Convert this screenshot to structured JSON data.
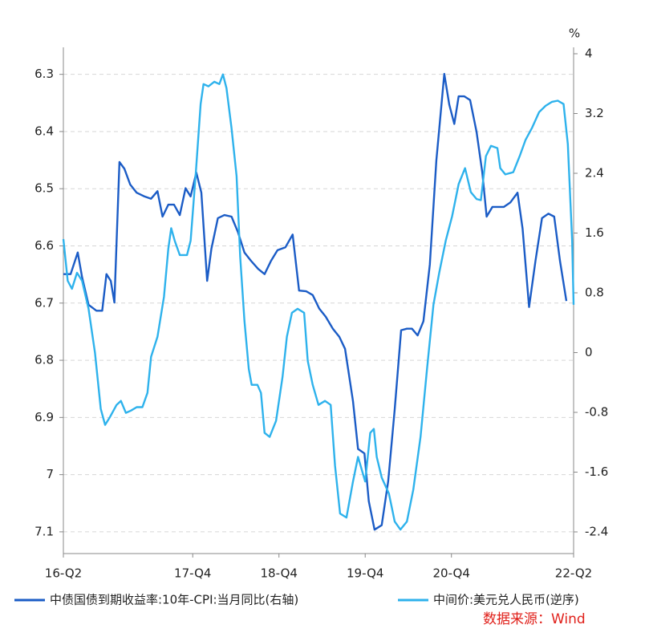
{
  "chart_data": {
    "type": "line",
    "y2_unit": "%",
    "xlim": [
      0,
      71
    ],
    "xticks": [
      {
        "value": 0,
        "label": "16-Q2"
      },
      {
        "value": 18,
        "label": "17-Q4"
      },
      {
        "value": 30,
        "label": "18-Q4"
      },
      {
        "value": 42,
        "label": "19-Q4"
      },
      {
        "value": 54,
        "label": "20-Q4"
      },
      {
        "value": 71,
        "label": "22-Q2"
      }
    ],
    "ylim": [
      7.138,
      6.264
    ],
    "yticks": [
      6.3,
      6.4,
      6.5,
      6.6,
      6.7,
      6.8,
      6.9,
      7,
      7.1
    ],
    "y2lim": [
      -2.69,
      4
    ],
    "y2ticks": [
      4,
      3.2,
      2.4,
      1.6,
      0.8,
      0,
      -0.8,
      -1.6,
      -2.4
    ],
    "grid": true,
    "legend": "bottom",
    "source": "数据来源：Wind",
    "source_color": "#e0201a",
    "series": [
      {
        "name": "中债国债到期收益率:10年-CPI:当月同比(右轴)",
        "color": "#1b5cc6",
        "axis": "y2",
        "x": [
          0,
          1.0,
          2.0,
          2.6,
          3.5,
          4.6,
          5.4,
          6.0,
          6.6,
          7.1,
          7.8,
          8.5,
          9.3,
          10.2,
          11.3,
          12.2,
          13.1,
          13.8,
          14.6,
          15.4,
          16.2,
          17.0,
          17.7,
          18.5,
          19.2,
          20.0,
          20.6,
          21.5,
          22.4,
          23.4,
          24.3,
          25.2,
          26.1,
          27.1,
          28.0,
          28.9,
          29.8,
          30.9,
          31.9,
          32.8,
          33.8,
          34.7,
          35.6,
          36.5,
          37.5,
          38.4,
          39.2,
          40.3,
          41.0,
          41.9,
          42.5,
          43.3,
          44.3,
          45.2,
          46.1,
          47.0,
          47.8,
          48.5,
          49.3,
          50.1,
          51.0,
          51.9,
          53.0,
          53.7,
          54.4,
          55.0,
          55.8,
          56.6,
          57.5,
          58.3,
          58.9,
          59.7,
          60.5,
          61.3,
          62.2,
          63.2,
          63.9,
          64.8,
          65.7,
          66.6,
          67.5,
          68.3,
          69.1,
          70.0
        ],
        "values": [
          1.05,
          1.05,
          1.34,
          1.01,
          0.64,
          0.56,
          0.56,
          1.05,
          0.96,
          0.67,
          2.55,
          2.46,
          2.25,
          2.14,
          2.09,
          2.06,
          2.16,
          1.82,
          1.98,
          1.98,
          1.84,
          2.2,
          2.09,
          2.41,
          2.14,
          0.96,
          1.39,
          1.8,
          1.84,
          1.82,
          1.61,
          1.34,
          1.23,
          1.12,
          1.05,
          1.23,
          1.37,
          1.41,
          1.58,
          0.83,
          0.82,
          0.77,
          0.59,
          0.48,
          0.32,
          0.21,
          0.05,
          -0.65,
          -1.29,
          -1.35,
          -1.99,
          -2.37,
          -2.31,
          -1.72,
          -0.76,
          0.3,
          0.32,
          0.32,
          0.23,
          0.42,
          1.18,
          2.57,
          3.73,
          3.32,
          3.06,
          3.43,
          3.43,
          3.38,
          2.95,
          2.41,
          1.82,
          1.95,
          1.95,
          1.95,
          2.01,
          2.14,
          1.66,
          0.61,
          1.23,
          1.8,
          1.86,
          1.82,
          1.23,
          0.69
        ]
      },
      {
        "name": "中间价:美元兑人民币(逆序)",
        "color": "#2eb2ec",
        "axis": "y",
        "x": [
          0,
          0.6,
          1.2,
          1.9,
          2.6,
          3.5,
          4.4,
          5.2,
          5.8,
          6.5,
          7.4,
          8.0,
          8.7,
          9.4,
          10.2,
          11.0,
          11.7,
          12.2,
          13.1,
          14.0,
          14.6,
          15.0,
          15.5,
          16.2,
          17.2,
          17.7,
          18.4,
          19.1,
          19.5,
          20.2,
          21.0,
          21.7,
          22.2,
          22.7,
          23.4,
          24.1,
          24.6,
          25.2,
          25.8,
          26.2,
          27.0,
          27.5,
          28.0,
          28.7,
          29.6,
          30.5,
          31.1,
          31.8,
          32.6,
          33.5,
          34.0,
          34.7,
          35.5,
          36.4,
          37.2,
          37.8,
          38.5,
          39.4,
          40.3,
          41.0,
          42.0,
          42.7,
          43.2,
          43.6,
          44.3,
          45.3,
          46.1,
          46.9,
          47.8,
          48.7,
          49.7,
          50.6,
          51.5,
          52.3,
          53.2,
          54.1,
          55.0,
          55.9,
          56.7,
          57.5,
          58.1,
          58.8,
          59.5,
          60.4,
          60.8,
          61.5,
          62.6,
          63.5,
          64.3,
          65.2,
          66.2,
          67.1,
          68.0,
          68.8,
          69.6,
          70.2,
          70.8,
          71.0
        ],
        "values": [
          6.588,
          6.661,
          6.675,
          6.647,
          6.661,
          6.71,
          6.787,
          6.885,
          6.913,
          6.899,
          6.878,
          6.871,
          6.892,
          6.888,
          6.882,
          6.882,
          6.857,
          6.794,
          6.759,
          6.689,
          6.605,
          6.569,
          6.591,
          6.616,
          6.616,
          6.591,
          6.478,
          6.352,
          6.317,
          6.321,
          6.313,
          6.317,
          6.3,
          6.324,
          6.394,
          6.478,
          6.619,
          6.731,
          6.815,
          6.843,
          6.843,
          6.857,
          6.927,
          6.934,
          6.906,
          6.829,
          6.759,
          6.717,
          6.71,
          6.717,
          6.801,
          6.843,
          6.878,
          6.871,
          6.878,
          6.984,
          7.068,
          7.075,
          7.012,
          6.969,
          7.012,
          6.927,
          6.92,
          6.969,
          7.005,
          7.033,
          7.082,
          7.096,
          7.082,
          7.026,
          6.934,
          6.815,
          6.703,
          6.647,
          6.591,
          6.548,
          6.492,
          6.464,
          6.506,
          6.518,
          6.52,
          6.443,
          6.425,
          6.429,
          6.464,
          6.475,
          6.471,
          6.443,
          6.415,
          6.394,
          6.366,
          6.355,
          6.348,
          6.346,
          6.352,
          6.422,
          6.591,
          6.703
        ]
      }
    ]
  }
}
